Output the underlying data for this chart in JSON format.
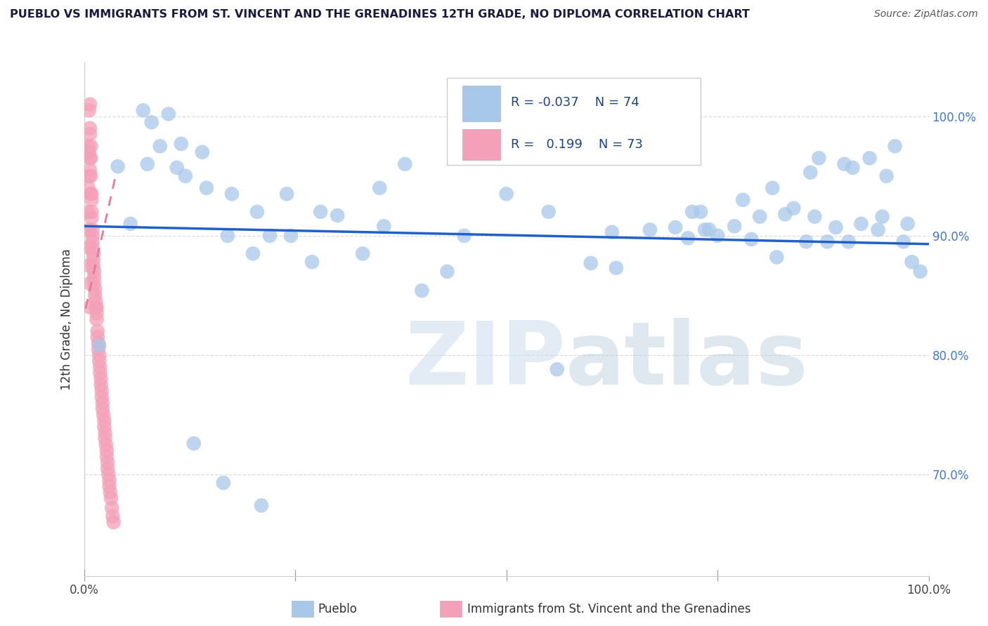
{
  "title": "PUEBLO VS IMMIGRANTS FROM ST. VINCENT AND THE GRENADINES 12TH GRADE, NO DIPLOMA CORRELATION CHART",
  "source_text": "Source: ZipAtlas.com",
  "ylabel": "12th Grade, No Diploma",
  "xlim": [
    0.0,
    1.0
  ],
  "ylim": [
    0.615,
    1.045
  ],
  "yticks": [
    0.7,
    0.8,
    0.9,
    1.0
  ],
  "ytick_labels": [
    "70.0%",
    "80.0%",
    "90.0%",
    "100.0%"
  ],
  "blue_color": "#a8c8ea",
  "pink_color": "#f4a0b8",
  "blue_line_color": "#2060c8",
  "pink_line_color": "#e87898",
  "legend_R_blue": "-0.037",
  "legend_N_blue": "74",
  "legend_R_pink": "0.199",
  "legend_N_pink": "73",
  "watermark_zip": "ZIP",
  "watermark_atlas": "atlas",
  "bg_color": "#ffffff",
  "grid_color": "#dddddd",
  "title_color": "#1a1a2e",
  "source_color": "#555555",
  "axis_label_color": "#333333",
  "tick_color": "#4477cc",
  "blue_x": [
    0.018,
    0.04,
    0.055,
    0.07,
    0.075,
    0.08,
    0.09,
    0.1,
    0.11,
    0.115,
    0.12,
    0.14,
    0.145,
    0.17,
    0.175,
    0.2,
    0.205,
    0.22,
    0.24,
    0.245,
    0.27,
    0.28,
    0.3,
    0.33,
    0.35,
    0.355,
    0.38,
    0.4,
    0.43,
    0.45,
    0.5,
    0.55,
    0.6,
    0.625,
    0.63,
    0.67,
    0.7,
    0.715,
    0.72,
    0.73,
    0.735,
    0.74,
    0.75,
    0.77,
    0.78,
    0.79,
    0.8,
    0.815,
    0.82,
    0.83,
    0.84,
    0.855,
    0.86,
    0.865,
    0.87,
    0.88,
    0.89,
    0.9,
    0.905,
    0.91,
    0.92,
    0.93,
    0.94,
    0.945,
    0.95,
    0.96,
    0.97,
    0.975,
    0.98,
    0.99,
    0.13,
    0.165,
    0.21,
    0.56
  ],
  "blue_y": [
    0.808,
    0.958,
    0.91,
    1.005,
    0.96,
    0.995,
    0.975,
    1.002,
    0.957,
    0.977,
    0.95,
    0.97,
    0.94,
    0.9,
    0.935,
    0.885,
    0.92,
    0.9,
    0.935,
    0.9,
    0.878,
    0.92,
    0.917,
    0.885,
    0.94,
    0.908,
    0.96,
    0.854,
    0.87,
    0.9,
    0.935,
    0.92,
    0.877,
    0.903,
    0.873,
    0.905,
    0.907,
    0.898,
    0.92,
    0.92,
    0.905,
    0.905,
    0.9,
    0.908,
    0.93,
    0.897,
    0.916,
    0.94,
    0.882,
    0.918,
    0.923,
    0.895,
    0.953,
    0.916,
    0.965,
    0.895,
    0.907,
    0.96,
    0.895,
    0.957,
    0.91,
    0.965,
    0.905,
    0.916,
    0.95,
    0.975,
    0.895,
    0.91,
    0.878,
    0.87,
    0.726,
    0.693,
    0.674,
    0.788
  ],
  "pink_x": [
    0.006,
    0.006,
    0.006,
    0.007,
    0.007,
    0.007,
    0.007,
    0.007,
    0.008,
    0.008,
    0.008,
    0.008,
    0.009,
    0.009,
    0.009,
    0.009,
    0.01,
    0.01,
    0.01,
    0.01,
    0.011,
    0.011,
    0.011,
    0.012,
    0.012,
    0.012,
    0.013,
    0.013,
    0.014,
    0.014,
    0.015,
    0.015,
    0.015,
    0.016,
    0.016,
    0.017,
    0.017,
    0.018,
    0.018,
    0.019,
    0.019,
    0.02,
    0.02,
    0.021,
    0.021,
    0.022,
    0.022,
    0.023,
    0.024,
    0.024,
    0.025,
    0.025,
    0.026,
    0.027,
    0.027,
    0.028,
    0.028,
    0.029,
    0.03,
    0.03,
    0.031,
    0.032,
    0.033,
    0.034,
    0.035,
    0.005,
    0.005,
    0.005,
    0.006,
    0.006,
    0.006,
    0.007,
    0.007
  ],
  "pink_y": [
    1.005,
    0.97,
    0.95,
    1.01,
    0.99,
    0.985,
    0.965,
    0.955,
    0.975,
    0.965,
    0.95,
    0.935,
    0.935,
    0.93,
    0.92,
    0.915,
    0.905,
    0.9,
    0.895,
    0.89,
    0.885,
    0.88,
    0.875,
    0.87,
    0.865,
    0.86,
    0.855,
    0.85,
    0.845,
    0.84,
    0.84,
    0.835,
    0.83,
    0.82,
    0.815,
    0.81,
    0.805,
    0.8,
    0.795,
    0.79,
    0.785,
    0.78,
    0.775,
    0.77,
    0.765,
    0.76,
    0.755,
    0.75,
    0.745,
    0.74,
    0.735,
    0.73,
    0.725,
    0.72,
    0.715,
    0.71,
    0.705,
    0.7,
    0.695,
    0.69,
    0.685,
    0.68,
    0.672,
    0.665,
    0.66,
    0.975,
    0.94,
    0.92,
    0.905,
    0.89,
    0.875,
    0.86,
    0.84
  ],
  "blue_trend_x": [
    0.0,
    1.0
  ],
  "blue_trend_y": [
    0.908,
    0.893
  ],
  "pink_trend_x": [
    0.002,
    0.038
  ],
  "pink_trend_y": [
    0.839,
    0.952
  ]
}
